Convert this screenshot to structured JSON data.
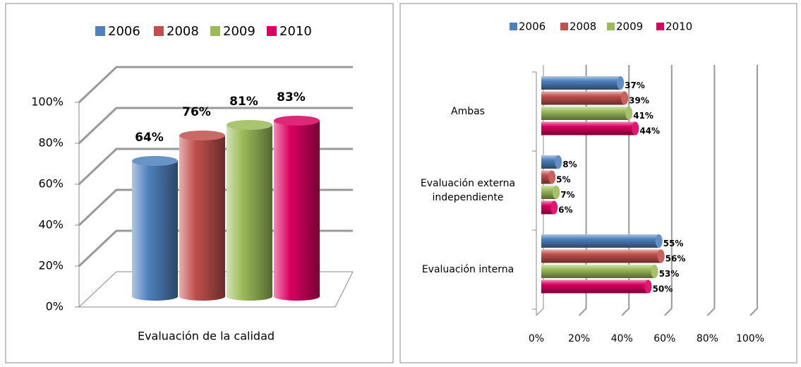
{
  "chart_data": [
    {
      "type": "bar",
      "categories": [
        "Evaluación de la calidad"
      ],
      "series": [
        {
          "name": "2006",
          "color": "#4f81bd",
          "values": [
            64
          ],
          "value_labels": [
            "64%"
          ]
        },
        {
          "name": "2008",
          "color": "#c0504d",
          "values": [
            76
          ],
          "value_labels": [
            "76%"
          ]
        },
        {
          "name": "2009",
          "color": "#9bbb59",
          "values": [
            81
          ],
          "value_labels": [
            "81%"
          ]
        },
        {
          "name": "2010",
          "color": "#d9005f",
          "values": [
            83
          ],
          "value_labels": [
            "83%"
          ]
        }
      ],
      "ylim": [
        0,
        100
      ],
      "yticks": [
        {
          "value": 0,
          "label": "0%"
        },
        {
          "value": 20,
          "label": "20%"
        },
        {
          "value": 40,
          "label": "40%"
        },
        {
          "value": 60,
          "label": "60%"
        },
        {
          "value": 80,
          "label": "80%"
        },
        {
          "value": 100,
          "label": "100%"
        }
      ],
      "grid": true,
      "legend": "top"
    },
    {
      "type": "hbar",
      "categories": [
        "Ambas",
        "Evaluación externa independiente",
        "Evaluación interna"
      ],
      "series": [
        {
          "name": "2006",
          "color": "#4f81bd",
          "values": [
            37,
            8,
            55
          ],
          "value_labels": [
            "37%",
            "8%",
            "55%"
          ]
        },
        {
          "name": "2008",
          "color": "#c0504d",
          "values": [
            39,
            5,
            56
          ],
          "value_labels": [
            "39%",
            "5%",
            "56%"
          ]
        },
        {
          "name": "2009",
          "color": "#9bbb59",
          "values": [
            41,
            7,
            53
          ],
          "value_labels": [
            "41%",
            "7%",
            "53%"
          ]
        },
        {
          "name": "2010",
          "color": "#d9005f",
          "values": [
            44,
            6,
            50
          ],
          "value_labels": [
            "44%",
            "6%",
            "50%"
          ]
        }
      ],
      "xlim": [
        0,
        100
      ],
      "xticks": [
        {
          "value": 0,
          "label": "0%"
        },
        {
          "value": 20,
          "label": "20%"
        },
        {
          "value": 40,
          "label": "40%"
        },
        {
          "value": 60,
          "label": "60%"
        },
        {
          "value": 80,
          "label": "80%"
        },
        {
          "value": 100,
          "label": "100%"
        }
      ],
      "grid": true,
      "legend": "top"
    }
  ]
}
